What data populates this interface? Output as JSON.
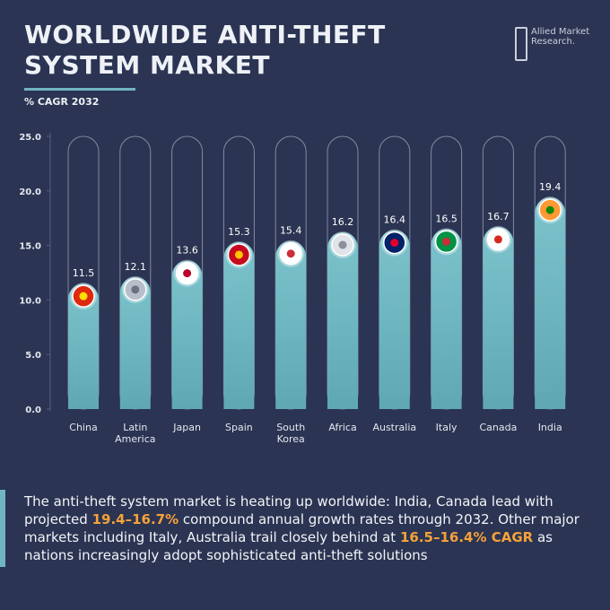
{
  "chart_data": {
    "type": "bar",
    "title": "WORLDWIDE ANTI-THEFT SYSTEM MARKET",
    "subtitle": "% CAGR 2032",
    "categories": [
      "China",
      "Latin America",
      "Japan",
      "Spain",
      "South Korea",
      "Africa",
      "Australia",
      "Italy",
      "Canada",
      "India"
    ],
    "values": [
      11.5,
      12.1,
      13.6,
      15.3,
      15.4,
      16.2,
      16.4,
      16.5,
      16.7,
      19.4
    ],
    "color": "#6fb6c0",
    "ylim": [
      0,
      25
    ],
    "yticks": [
      {
        "value": 0,
        "label": "0.0"
      },
      {
        "value": 5,
        "label": "5.0"
      },
      {
        "value": 10,
        "label": "10.0"
      },
      {
        "value": 15,
        "label": "15.0"
      },
      {
        "value": 20,
        "label": "20.0"
      },
      {
        "value": 25,
        "label": "25.0"
      }
    ]
  },
  "logo": "Allied Market Research.",
  "description": [
    "The anti-theft system market is heating up worldwide: India, Canada lead with projected ",
    "19.4–16.7%",
    " compound annual growth rates through 2032. Other major markets including Italy, Australia trail closely behind at ",
    "16.5–16.4% CAGR",
    " as nations increasingly adopt sophisticated anti-theft solutions"
  ]
}
